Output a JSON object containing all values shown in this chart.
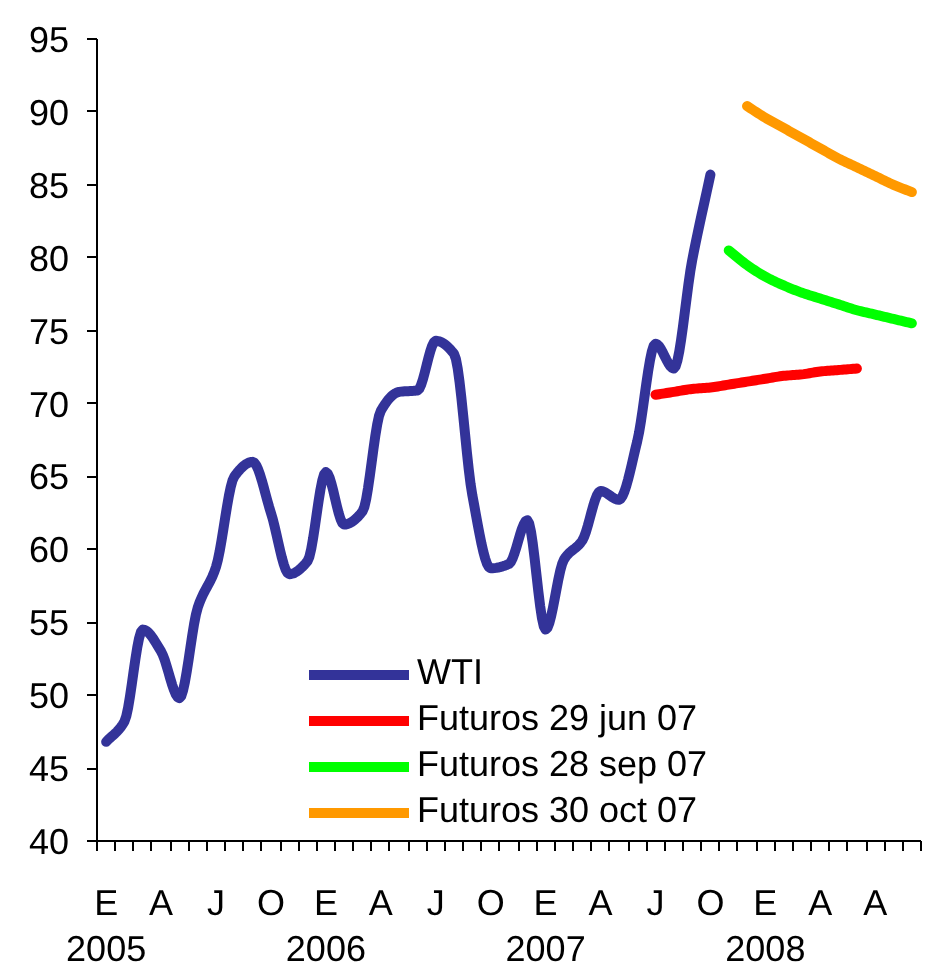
{
  "chart_data": {
    "type": "line",
    "categories": [
      "E\n2005",
      null,
      null,
      "A",
      null,
      null,
      "J",
      null,
      null,
      "O",
      null,
      null,
      "E\n2006",
      null,
      null,
      "A",
      null,
      null,
      "J",
      null,
      null,
      "O",
      null,
      null,
      "E\n2007",
      null,
      null,
      "A",
      null,
      null,
      "J",
      null,
      null,
      "O",
      null,
      null,
      "E\n2008",
      null,
      null,
      "A",
      null,
      null,
      "A",
      null,
      null
    ],
    "ylim": [
      40,
      95
    ],
    "yticks": [
      40,
      45,
      50,
      55,
      60,
      65,
      70,
      75,
      80,
      85,
      90,
      95
    ],
    "legend": "bottom",
    "series": [
      {
        "name": "WTI",
        "color": "#333399",
        "values": [
          46.8,
          48.2,
          54.5,
          53.0,
          49.8,
          56.0,
          58.8,
          65.0,
          66.0,
          62.5,
          58.3,
          59.2,
          65.3,
          61.7,
          62.6,
          69.5,
          70.8,
          70.9,
          74.3,
          73.4,
          63.7,
          58.7,
          59.0,
          62.0,
          54.5,
          59.3,
          60.6,
          64.0,
          63.4,
          67.4,
          74.1,
          72.4,
          79.8,
          85.7,
          null,
          null,
          null,
          null,
          null,
          null,
          null,
          null,
          null,
          null,
          null
        ]
      },
      {
        "name": "Futuros 29 jun 07",
        "color": "#ff0000",
        "values": [
          null,
          null,
          null,
          null,
          null,
          null,
          null,
          null,
          null,
          null,
          null,
          null,
          null,
          null,
          null,
          null,
          null,
          null,
          null,
          null,
          null,
          null,
          null,
          null,
          null,
          null,
          null,
          null,
          null,
          null,
          70.6,
          70.8,
          71.0,
          71.1,
          71.3,
          71.5,
          71.7,
          71.9,
          72.0,
          72.2,
          72.3,
          72.4,
          null,
          null,
          null
        ]
      },
      {
        "name": "Futuros 28 sep 07",
        "color": "#00ff00",
        "values": [
          null,
          null,
          null,
          null,
          null,
          null,
          null,
          null,
          null,
          null,
          null,
          null,
          null,
          null,
          null,
          null,
          null,
          null,
          null,
          null,
          null,
          null,
          null,
          null,
          null,
          null,
          null,
          null,
          null,
          null,
          null,
          null,
          null,
          null,
          80.5,
          79.5,
          78.7,
          78.1,
          77.6,
          77.2,
          76.8,
          76.4,
          76.1,
          75.8,
          75.5
        ]
      },
      {
        "name": "Futuros 30 oct 07",
        "color": "#ff9900",
        "values": [
          null,
          null,
          null,
          null,
          null,
          null,
          null,
          null,
          null,
          null,
          null,
          null,
          null,
          null,
          null,
          null,
          null,
          null,
          null,
          null,
          null,
          null,
          null,
          null,
          null,
          null,
          null,
          null,
          null,
          null,
          null,
          null,
          null,
          null,
          null,
          90.4,
          89.6,
          88.9,
          88.2,
          87.5,
          86.8,
          86.2,
          85.6,
          85.0,
          84.5
        ]
      }
    ]
  }
}
